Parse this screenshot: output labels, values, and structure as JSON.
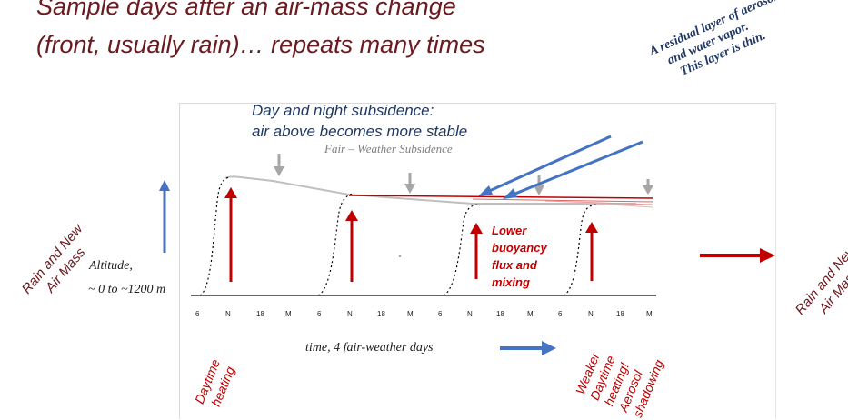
{
  "title_line1": "Sample days after an air-mass change",
  "title_line2": "(front, usually rain)… repeats many times",
  "subsidence_line1": "Day and night subsidence:",
  "subsidence_line2": "air above becomes more stable",
  "fair_weather": "Fair – Weather Subsidence",
  "residual_line1": "A residual layer of aerosol",
  "residual_line2": "and water vapor.",
  "residual_line3": "This layer is thin.",
  "lower_buoyancy": [
    "Lower",
    "buoyancy",
    "flux and",
    "mixing"
  ],
  "altitude_line1": "Altitude,",
  "altitude_line2": "~ 0 to ~1200 m",
  "rain_left": [
    "Rain and New",
    "Air Mass"
  ],
  "rain_right": [
    "Rain and New",
    "Air Mass"
  ],
  "time_label": "time,  4 fair-weather days",
  "ticks": [
    "6",
    "N",
    "18",
    "M",
    "6",
    "N",
    "18",
    "M",
    "6",
    "N",
    "18",
    "M",
    "6",
    "N",
    "18",
    "M"
  ],
  "daytime_heating": [
    "Daytime",
    "heating"
  ],
  "weaker": [
    "Weaker",
    "Daytime",
    "heating!",
    "Aerosol",
    "shadowing"
  ],
  "colors": {
    "maroon": "#6b1a20",
    "red": "#c00000",
    "blue": "#4472c4",
    "navy": "#1f3864",
    "gray": "#a6a6a6"
  }
}
